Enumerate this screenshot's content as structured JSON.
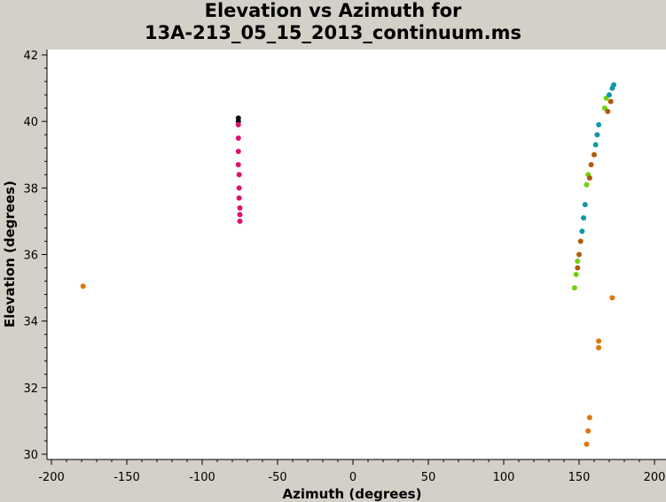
{
  "chart_data": {
    "type": "scatter",
    "title": [
      "Elevation vs Azimuth for",
      "13A-213_05_15_2013_continuum.ms"
    ],
    "xlabel": "Azimuth (degrees)",
    "ylabel": "Elevation (degrees)",
    "xlim": [
      -200,
      200
    ],
    "ylim": [
      30,
      42
    ],
    "x_ticks": [
      -200,
      -150,
      -100,
      -50,
      0,
      50,
      100,
      150,
      200
    ],
    "y_ticks": [
      30,
      32,
      34,
      36,
      38,
      40,
      42
    ],
    "grid": false,
    "legend": "none",
    "colors": {
      "background": "#d4d0c8",
      "plot_area": "#ffffff",
      "magenta": "#e0116f",
      "black": "#111111",
      "orange": "#e0760b",
      "green": "#6fd30a",
      "brown": "#b05a0a",
      "teal": "#1097a8"
    },
    "series": [
      {
        "color_key": "black",
        "points": [
          [
            -76,
            40.1
          ],
          [
            -76,
            40.0
          ]
        ]
      },
      {
        "color_key": "magenta",
        "points": [
          [
            -76,
            39.9
          ],
          [
            -76,
            39.5
          ],
          [
            -76,
            39.1
          ],
          [
            -76,
            38.7
          ],
          [
            -75.5,
            38.4
          ],
          [
            -75.5,
            38.0
          ],
          [
            -75.5,
            37.7
          ],
          [
            -75,
            37.4
          ],
          [
            -75,
            37.2
          ],
          [
            -75,
            37.0
          ]
        ]
      },
      {
        "color_key": "orange",
        "points": [
          [
            -179,
            35.05
          ],
          [
            155,
            30.3
          ],
          [
            156,
            30.7
          ],
          [
            157,
            31.1
          ],
          [
            163,
            33.2
          ],
          [
            163,
            33.4
          ],
          [
            172,
            34.7
          ]
        ]
      },
      {
        "color_key": "green",
        "points": [
          [
            147,
            35.0
          ],
          [
            148,
            35.4
          ],
          [
            149,
            35.8
          ],
          [
            155,
            38.1
          ],
          [
            156,
            38.4
          ],
          [
            167,
            40.4
          ],
          [
            168,
            40.7
          ]
        ]
      },
      {
        "color_key": "brown",
        "points": [
          [
            149,
            35.6
          ],
          [
            150,
            36.0
          ],
          [
            151,
            36.4
          ],
          [
            157,
            38.3
          ],
          [
            158,
            38.7
          ],
          [
            160,
            39.0
          ],
          [
            169,
            40.3
          ],
          [
            171,
            40.6
          ]
        ]
      },
      {
        "color_key": "teal",
        "points": [
          [
            152,
            36.7
          ],
          [
            153,
            37.1
          ],
          [
            154,
            37.5
          ],
          [
            161,
            39.3
          ],
          [
            162,
            39.6
          ],
          [
            163,
            39.9
          ],
          [
            170,
            40.8
          ],
          [
            172,
            41.0
          ],
          [
            173,
            41.1
          ]
        ]
      }
    ]
  }
}
